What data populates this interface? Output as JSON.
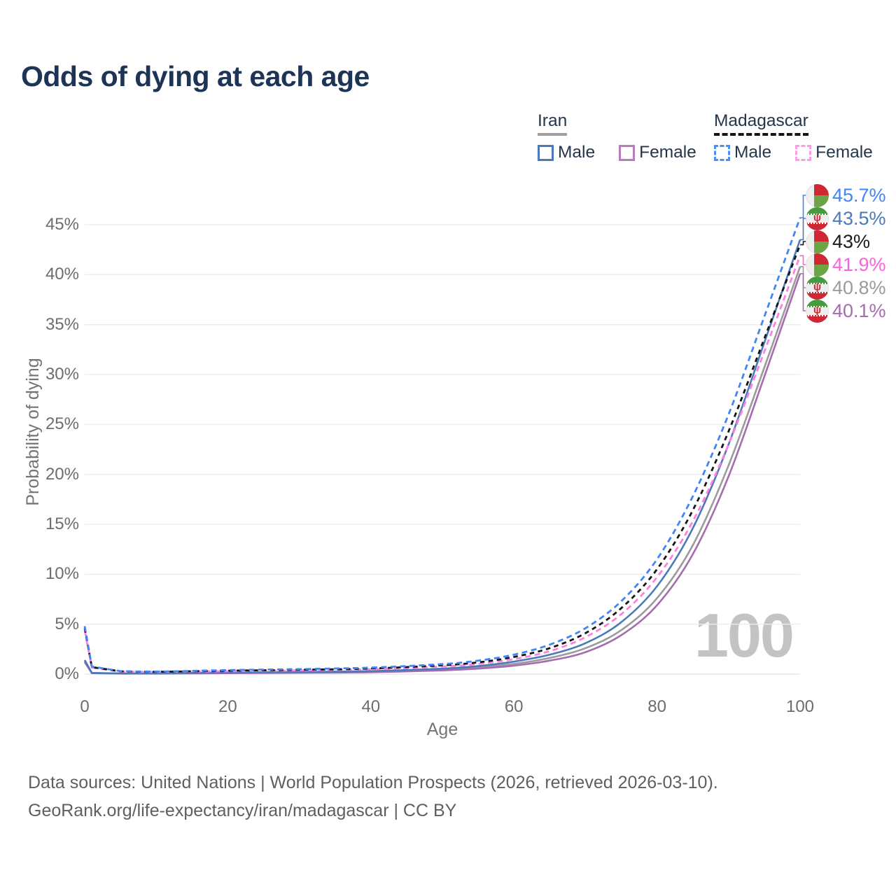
{
  "title": "Odds of dying at each age",
  "colors": {
    "title": "#1d3456",
    "legend_text": "#24364a",
    "tick_text": "#6d6d6d",
    "watermark": "#c3c3c3"
  },
  "icons": {
    "iran_emblem": "ψ"
  },
  "flags": {
    "madagascar": {
      "white": "#efefef",
      "red": "#cf2733",
      "green": "#6da445"
    },
    "iran": {
      "white": "#efefef",
      "green": "#449c3e",
      "red": "#cf2733"
    }
  },
  "legend": {
    "groups": [
      {
        "label": "Iran",
        "line_color": "#a0a0a0",
        "line_style": "solid",
        "items": [
          {
            "label": "Male",
            "color": "#4a7ab9",
            "style": "solid"
          },
          {
            "label": "Female",
            "color": "#b77cba",
            "style": "solid"
          }
        ]
      },
      {
        "label": "Madagascar",
        "line_color": "#141414",
        "line_style": "dashed",
        "items": [
          {
            "label": "Male",
            "color": "#4d8df5",
            "style": "dashed"
          },
          {
            "label": "Female",
            "color": "#ff9ae5",
            "style": "dashed"
          }
        ]
      }
    ]
  },
  "chart_data": {
    "type": "line",
    "title": "Odds of dying at each age",
    "xlabel": "Age",
    "ylabel": "Probability of dying",
    "xlim": [
      0,
      100
    ],
    "ylim": [
      0,
      47
    ],
    "xticks": [
      0,
      20,
      40,
      60,
      80,
      100
    ],
    "yticks": [
      0,
      5,
      10,
      15,
      20,
      25,
      30,
      35,
      40,
      45
    ],
    "ytick_suffix": "%",
    "grid": true,
    "legend_position": "top-right",
    "age_cursor_label": "100",
    "ages": [
      0,
      1,
      5,
      10,
      20,
      30,
      40,
      50,
      55,
      60,
      65,
      70,
      75,
      80,
      85,
      90,
      95,
      100
    ],
    "series": [
      {
        "id": "madagascar-male",
        "country": "Madagascar",
        "sex": "Male",
        "style": "dashed",
        "dash": "8 5.5",
        "color": "#4285f4",
        "label_color": "#4285f4",
        "end_label": "45.7%",
        "flag": "madagascar",
        "values": [
          4.8,
          0.75,
          0.3,
          0.25,
          0.4,
          0.5,
          0.65,
          1.0,
          1.35,
          1.95,
          2.95,
          4.6,
          7.3,
          11.5,
          17.8,
          26.0,
          35.8,
          45.7
        ]
      },
      {
        "id": "iran-male",
        "country": "Iran",
        "sex": "Male",
        "style": "solid",
        "dash": null,
        "color": "#4a7ab9",
        "label_color": "#4a7ab9",
        "end_label": "43.5%",
        "flag": "iran",
        "values": [
          1.4,
          0.12,
          0.07,
          0.07,
          0.17,
          0.21,
          0.3,
          0.55,
          0.8,
          1.25,
          1.95,
          3.1,
          5.2,
          8.8,
          14.6,
          23.0,
          33.2,
          43.5
        ]
      },
      {
        "id": "madagascar-both",
        "country": "Madagascar",
        "sex": "Both",
        "style": "dashed",
        "dash": "6.5 5.5",
        "color": "#151515",
        "label_color": "#1a1a1a",
        "end_label": "43%",
        "flag": "madagascar",
        "values": [
          4.6,
          0.7,
          0.28,
          0.23,
          0.34,
          0.43,
          0.56,
          0.88,
          1.18,
          1.72,
          2.6,
          4.1,
          6.6,
          10.5,
          16.4,
          24.3,
          33.6,
          43.0
        ]
      },
      {
        "id": "madagascar-female",
        "country": "Madagascar",
        "sex": "Female",
        "style": "dashed",
        "dash": "8 5.5",
        "color": "#ff80e1",
        "label_color": "#fb63dd",
        "end_label": "41.9%",
        "flag": "madagascar",
        "values": [
          4.4,
          0.65,
          0.26,
          0.21,
          0.29,
          0.37,
          0.48,
          0.76,
          1.02,
          1.5,
          2.3,
          3.7,
          6.0,
          9.7,
          15.3,
          23.0,
          32.3,
          41.9
        ]
      },
      {
        "id": "iran-both",
        "country": "Iran",
        "sex": "Both",
        "style": "solid",
        "dash": null,
        "color": "#9b9b9b",
        "label_color": "#9b9b9b",
        "end_label": "40.8%",
        "flag": "iran",
        "values": [
          1.3,
          0.11,
          0.06,
          0.06,
          0.13,
          0.17,
          0.24,
          0.45,
          0.66,
          1.02,
          1.62,
          2.6,
          4.4,
          7.6,
          12.9,
          20.9,
          30.7,
          40.8
        ]
      },
      {
        "id": "iran-female",
        "country": "Iran",
        "sex": "Female",
        "style": "solid",
        "dash": null,
        "color": "#a76cb0",
        "label_color": "#a76cb0",
        "end_label": "40.1%",
        "flag": "iran",
        "values": [
          1.2,
          0.1,
          0.05,
          0.05,
          0.09,
          0.13,
          0.19,
          0.37,
          0.55,
          0.85,
          1.35,
          2.2,
          3.9,
          6.9,
          12.0,
          19.8,
          29.8,
          40.1
        ]
      }
    ]
  },
  "footer": {
    "line1": "Data sources: United Nations | World Population Prospects (2026, retrieved 2026-03-10).",
    "line2": "GeoRank.org/life-expectancy/iran/madagascar | CC BY"
  }
}
